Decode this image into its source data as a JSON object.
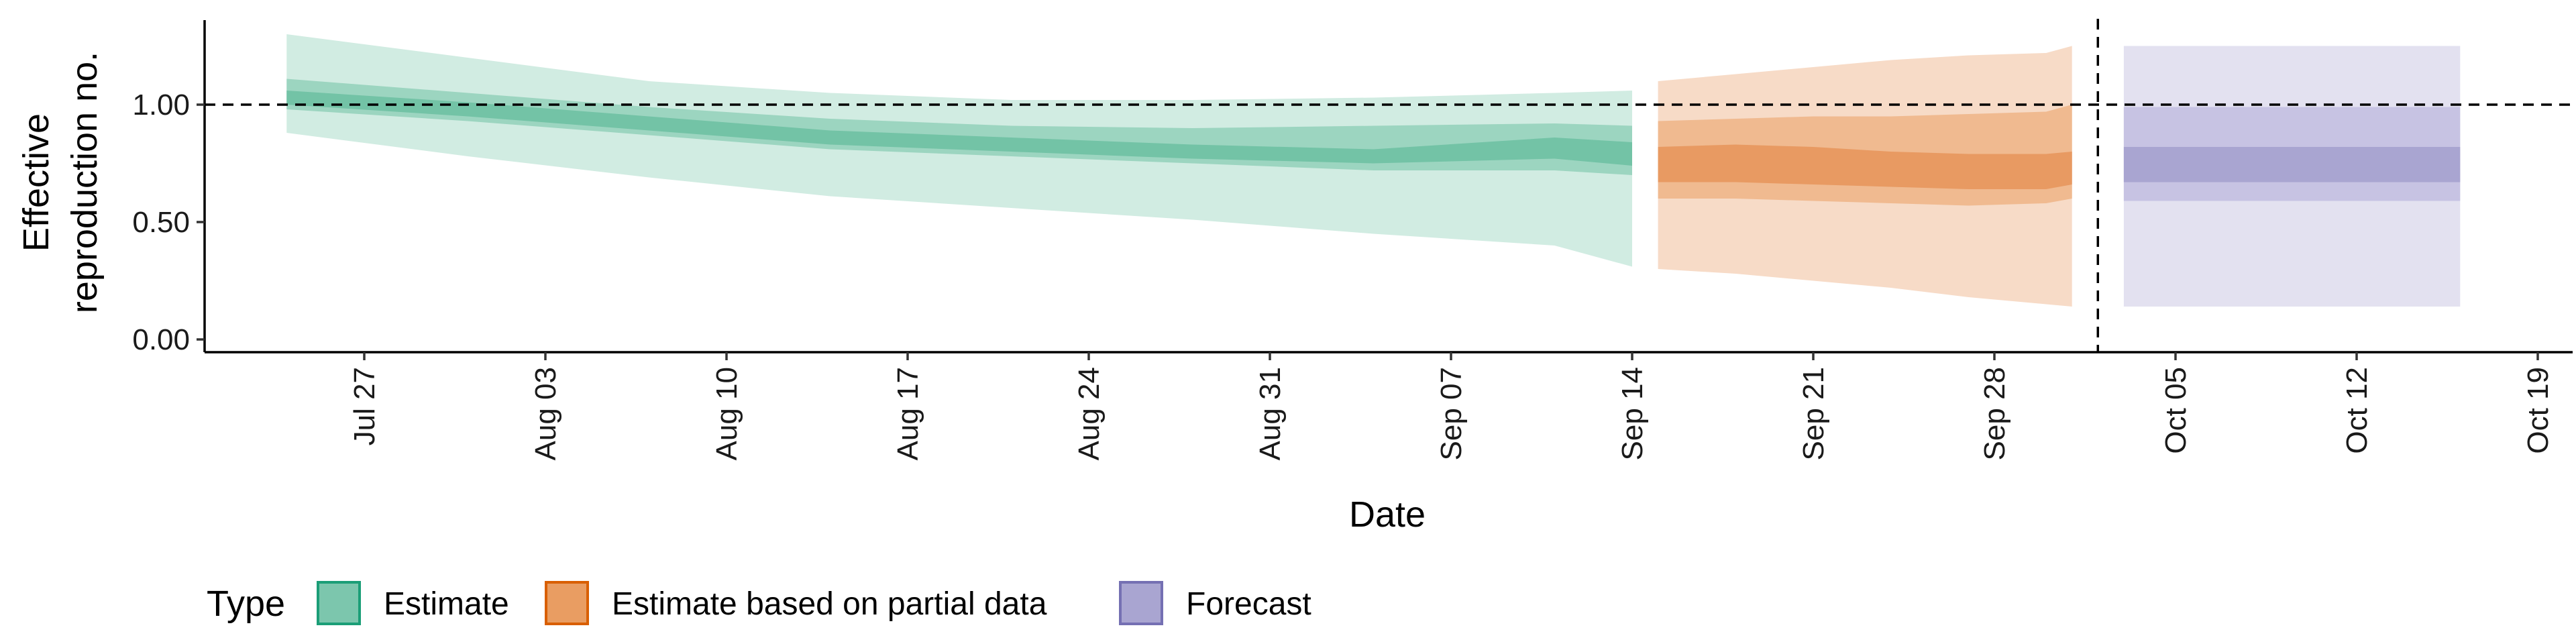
{
  "chart_data": {
    "type": "area",
    "xlabel": "Date",
    "ylabel_lines": [
      "Effective",
      "reproduction no."
    ],
    "ylim": [
      0.0,
      1.3
    ],
    "y_ticks": [
      {
        "value": 0.0,
        "label": "0.00"
      },
      {
        "value": 0.5,
        "label": "0.50"
      },
      {
        "value": 1.0,
        "label": "1.00"
      }
    ],
    "x_ticks": [
      "Jul 27",
      "Aug 03",
      "Aug 10",
      "Aug 17",
      "Aug 24",
      "Aug 31",
      "Sep 07",
      "Sep 14",
      "Sep 21",
      "Sep 28",
      "Oct 05",
      "Oct 12",
      "Oct 19"
    ],
    "reference_line_y": 1.0,
    "forecast_start_marker": "2020-10-02",
    "grid": false,
    "legend": {
      "title": "Type",
      "placement": "bottom",
      "entries": [
        {
          "label": "Estimate",
          "fill": "#7cc6ad",
          "stroke": "#1b9e77"
        },
        {
          "label": "Estimate based on partial data",
          "fill": "#e99d62",
          "stroke": "#d95f02"
        },
        {
          "label": "Forecast",
          "fill": "#a9a5d1",
          "stroke": "#7570b3"
        }
      ]
    },
    "series": [
      {
        "name": "Estimate",
        "colors": {
          "outer": "#d1ece2",
          "mid": "#9cd5c0",
          "inner": "#73c3a6"
        },
        "x": [
          "2020-07-24",
          "2020-07-31",
          "2020-08-07",
          "2020-08-14",
          "2020-08-21",
          "2020-08-28",
          "2020-09-04",
          "2020-09-11",
          "2020-09-14"
        ],
        "median": [
          1.03,
          0.98,
          0.92,
          0.86,
          0.83,
          0.8,
          0.78,
          0.8,
          0.8
        ],
        "mid_lower": [
          0.98,
          0.93,
          0.87,
          0.81,
          0.78,
          0.75,
          0.72,
          0.72,
          0.7
        ],
        "mid_upper": [
          1.11,
          1.05,
          0.99,
          0.94,
          0.91,
          0.9,
          0.91,
          0.92,
          0.91
        ],
        "inner_lower": [
          1.0,
          0.95,
          0.89,
          0.83,
          0.8,
          0.77,
          0.75,
          0.77,
          0.74
        ],
        "inner_upper": [
          1.06,
          1.01,
          0.95,
          0.89,
          0.86,
          0.83,
          0.81,
          0.86,
          0.84
        ],
        "outer_lower": [
          0.88,
          0.78,
          0.69,
          0.61,
          0.56,
          0.51,
          0.45,
          0.4,
          0.31
        ],
        "outer_upper": [
          1.3,
          1.2,
          1.1,
          1.05,
          1.02,
          1.02,
          1.03,
          1.05,
          1.06
        ]
      },
      {
        "name": "Estimate based on partial data",
        "colors": {
          "outer": "#f7dbc7",
          "mid": "#f0ba90",
          "inner": "#e89a62"
        },
        "x": [
          "2020-09-15",
          "2020-09-18",
          "2020-09-21",
          "2020-09-24",
          "2020-09-27",
          "2020-09-30",
          "2020-10-01"
        ],
        "median": [
          0.75,
          0.75,
          0.74,
          0.72,
          0.71,
          0.71,
          0.72
        ],
        "mid_lower": [
          0.6,
          0.6,
          0.59,
          0.58,
          0.57,
          0.58,
          0.6
        ],
        "mid_upper": [
          0.93,
          0.94,
          0.95,
          0.95,
          0.96,
          0.97,
          1.0
        ],
        "inner_lower": [
          0.67,
          0.67,
          0.66,
          0.65,
          0.64,
          0.64,
          0.66
        ],
        "inner_upper": [
          0.82,
          0.83,
          0.82,
          0.8,
          0.79,
          0.79,
          0.8
        ],
        "outer_lower": [
          0.3,
          0.28,
          0.25,
          0.22,
          0.18,
          0.15,
          0.14
        ],
        "outer_upper": [
          1.1,
          1.13,
          1.16,
          1.19,
          1.21,
          1.22,
          1.25
        ]
      },
      {
        "name": "Forecast",
        "colors": {
          "outer": "#e3e1f0",
          "mid": "#c7c3e3",
          "inner": "#a9a5d1"
        },
        "x": [
          "2020-10-03",
          "2020-10-16"
        ],
        "median": [
          0.76,
          0.76
        ],
        "mid_lower": [
          0.59,
          0.59
        ],
        "mid_upper": [
          0.99,
          0.99
        ],
        "inner_lower": [
          0.67,
          0.67
        ],
        "inner_upper": [
          0.82,
          0.82
        ],
        "outer_lower": [
          0.14,
          0.14
        ],
        "outer_upper": [
          1.25,
          1.25
        ]
      }
    ]
  }
}
